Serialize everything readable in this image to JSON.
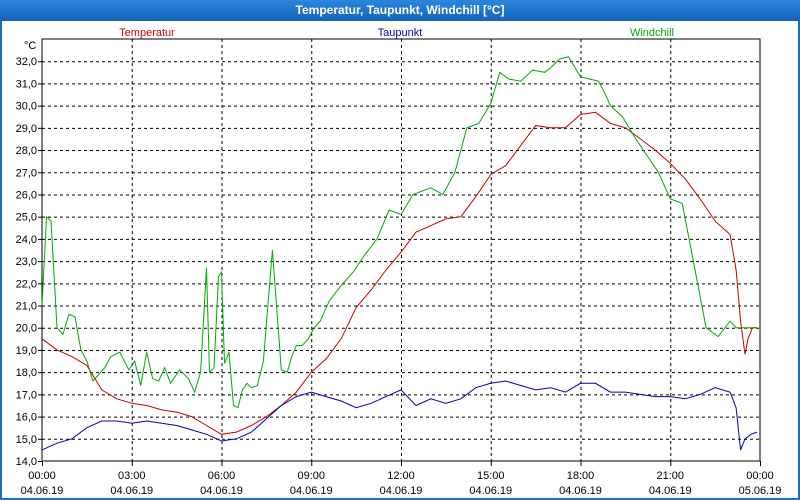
{
  "window": {
    "title": "Temperatur, Taupunkt, Windchill [°C]"
  },
  "chart_data": {
    "type": "line",
    "title": "Temperatur, Taupunkt, Windchill [°C]",
    "ylabel": "°C",
    "ylim": [
      14,
      33
    ],
    "yticks": [
      "14,0",
      "15,0",
      "16,0",
      "17,0",
      "18,0",
      "19,0",
      "20,0",
      "21,0",
      "22,0",
      "23,0",
      "24,0",
      "25,0",
      "26,0",
      "27,0",
      "28,0",
      "29,0",
      "30,0",
      "31,0",
      "32,0"
    ],
    "xlim": [
      0,
      24
    ],
    "xticks": [
      {
        "time": "00:00",
        "date": "04.06.19"
      },
      {
        "time": "03:00",
        "date": "04.06.19"
      },
      {
        "time": "06:00",
        "date": "04.06.19"
      },
      {
        "time": "09:00",
        "date": "04.06.19"
      },
      {
        "time": "12:00",
        "date": "04.06.19"
      },
      {
        "time": "15:00",
        "date": "04.06.19"
      },
      {
        "time": "18:00",
        "date": "04.06.19"
      },
      {
        "time": "21:00",
        "date": "04.06.19"
      },
      {
        "time": "00:00",
        "date": "05.06.19"
      }
    ],
    "grid": true,
    "series": [
      {
        "name": "Temperatur",
        "color": "#cc0000",
        "x": [
          0,
          0.5,
          1,
          1.5,
          2,
          2.5,
          3,
          3.5,
          4,
          4.5,
          5,
          5.5,
          6,
          6.5,
          7,
          7.5,
          8,
          8.5,
          9,
          9.5,
          10,
          10.5,
          11,
          11.5,
          12,
          12.5,
          13,
          13.5,
          14,
          14.5,
          15,
          15.5,
          16,
          16.5,
          17,
          17.5,
          18,
          18.5,
          19,
          19.5,
          20,
          20.5,
          21,
          21.5,
          22,
          22.5,
          23,
          23.2,
          23.35,
          23.5,
          23.6,
          23.75,
          23.9
        ],
        "y": [
          19.5,
          19.0,
          18.7,
          18.3,
          17.2,
          16.8,
          16.6,
          16.5,
          16.3,
          16.2,
          16.0,
          15.6,
          15.2,
          15.3,
          15.6,
          16.0,
          16.5,
          17.1,
          18.0,
          18.6,
          19.5,
          20.9,
          21.7,
          22.6,
          23.4,
          24.3,
          24.6,
          24.9,
          25.0,
          25.9,
          26.9,
          27.3,
          28.2,
          29.1,
          29.0,
          29.0,
          29.6,
          29.7,
          29.2,
          29.0,
          28.5,
          28.0,
          27.4,
          26.7,
          25.8,
          24.8,
          24.2,
          22.6,
          20.3,
          18.8,
          19.5,
          20.0,
          20.0
        ]
      },
      {
        "name": "Taupunkt",
        "color": "#0000bb",
        "x": [
          0,
          0.5,
          1,
          1.5,
          2,
          2.5,
          3,
          3.5,
          4,
          4.5,
          5,
          5.5,
          6,
          6.5,
          7,
          7.5,
          8,
          8.5,
          9,
          9.5,
          10,
          10.5,
          11,
          11.5,
          12,
          12.5,
          13,
          13.5,
          14,
          14.5,
          15,
          15.5,
          16,
          16.5,
          17,
          17.5,
          18,
          18.5,
          19,
          19.5,
          20,
          20.5,
          21,
          21.5,
          22,
          22.5,
          23,
          23.2,
          23.35,
          23.5,
          23.7,
          23.9
        ],
        "y": [
          14.5,
          14.8,
          15.0,
          15.5,
          15.8,
          15.8,
          15.7,
          15.8,
          15.7,
          15.6,
          15.4,
          15.2,
          14.9,
          15.0,
          15.3,
          15.9,
          16.5,
          16.9,
          17.1,
          16.9,
          16.7,
          16.4,
          16.6,
          16.9,
          17.2,
          16.5,
          16.8,
          16.6,
          16.8,
          17.3,
          17.5,
          17.6,
          17.4,
          17.2,
          17.3,
          17.1,
          17.5,
          17.5,
          17.1,
          17.1,
          17.0,
          16.9,
          16.9,
          16.8,
          17.0,
          17.3,
          17.1,
          16.4,
          14.5,
          15.0,
          15.2,
          15.3
        ]
      },
      {
        "name": "Windchill",
        "color": "#00aa00",
        "x": [
          0,
          0.15,
          0.3,
          0.5,
          0.7,
          0.9,
          1.1,
          1.3,
          1.5,
          1.7,
          1.9,
          2.1,
          2.3,
          2.6,
          2.9,
          3.1,
          3.3,
          3.5,
          3.7,
          3.9,
          4.1,
          4.3,
          4.6,
          4.9,
          5.1,
          5.3,
          5.5,
          5.6,
          5.75,
          5.9,
          6.0,
          6.1,
          6.25,
          6.4,
          6.55,
          6.7,
          6.85,
          7.0,
          7.2,
          7.4,
          7.7,
          8.0,
          8.2,
          8.35,
          8.5,
          8.7,
          8.9,
          9.1,
          9.3,
          9.6,
          10.0,
          10.4,
          10.8,
          11.2,
          11.6,
          12.0,
          12.4,
          12.8,
          13.0,
          13.4,
          13.8,
          14.2,
          14.6,
          15.0,
          15.3,
          15.6,
          16.0,
          16.4,
          16.8,
          17.0,
          17.3,
          17.6,
          18.0,
          18.3,
          18.6,
          18.8,
          19.0,
          19.4,
          19.8,
          20.2,
          20.6,
          21.0,
          21.4,
          21.8,
          22.2,
          22.6,
          23.0,
          23.2,
          23.35,
          23.5,
          23.65,
          23.8,
          23.9
        ],
        "y": [
          21.0,
          25.0,
          24.8,
          20.0,
          19.7,
          20.6,
          20.5,
          19.0,
          18.5,
          17.6,
          17.9,
          18.2,
          18.7,
          18.9,
          18.1,
          18.5,
          17.4,
          18.9,
          17.7,
          17.6,
          18.2,
          17.5,
          18.1,
          17.7,
          17.1,
          18.0,
          22.7,
          18.0,
          18.2,
          22.3,
          22.5,
          18.4,
          18.9,
          16.5,
          16.4,
          17.2,
          17.5,
          17.3,
          17.4,
          18.5,
          23.5,
          18.1,
          18.0,
          18.7,
          19.2,
          19.2,
          19.5,
          20.0,
          20.3,
          21.2,
          21.9,
          22.5,
          23.3,
          24.0,
          25.3,
          25.1,
          26.0,
          26.2,
          26.3,
          26.0,
          27.0,
          29.0,
          29.2,
          30.1,
          31.5,
          31.2,
          31.1,
          31.6,
          31.5,
          31.7,
          32.1,
          32.2,
          31.3,
          31.2,
          31.1,
          30.6,
          30.0,
          29.5,
          28.6,
          27.8,
          27.0,
          25.8,
          25.6,
          22.8,
          20.0,
          19.6,
          20.3,
          20.0,
          20.0,
          20.0,
          20.0,
          20.0,
          20.0
        ]
      }
    ]
  }
}
